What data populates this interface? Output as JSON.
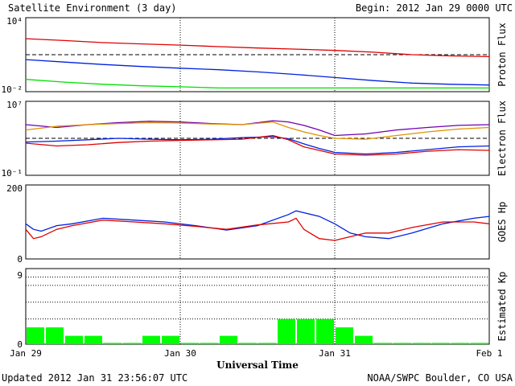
{
  "header": {
    "title": "Satellite Environment (3 day)",
    "begin": "Begin:  2012 Jan 29 0000 UTC"
  },
  "footer": {
    "updated": "Updated 2012 Jan 31 23:56:07 UTC",
    "credit": "NOAA/SWPC Boulder, CO USA",
    "xlabel": "Universal Time"
  },
  "x_ticks": [
    "Jan 29",
    "Jan 30",
    "Jan 31",
    "Feb 1"
  ],
  "colors": {
    "red": "#e00000",
    "blue": "#0020e0",
    "green": "#00e000",
    "purple": "#7000b0",
    "orange": "#e09000",
    "kp_bar": "#00ff00"
  },
  "chart_data": [
    {
      "type": "line",
      "ylabel": "Proton Flux",
      "yscale": "log",
      "ytick_labels": [
        "10⁴",
        "10⁻²"
      ],
      "ylim": [
        0.01,
        10000
      ],
      "threshold": 10,
      "x": [
        0,
        0.25,
        0.5,
        0.75,
        1,
        1.25,
        1.5,
        1.75,
        2,
        2.25,
        2.5,
        2.75,
        3
      ],
      "series": [
        {
          "color": "red",
          "values": [
            200,
            140,
            95,
            75,
            60,
            45,
            35,
            28,
            22,
            16,
            10,
            8,
            7
          ]
        },
        {
          "color": "blue",
          "values": [
            4,
            2.5,
            1.6,
            1.1,
            0.8,
            0.6,
            0.4,
            0.25,
            0.14,
            0.08,
            0.05,
            0.04,
            0.035
          ]
        },
        {
          "color": "green",
          "values": [
            0.1,
            0.06,
            0.04,
            0.03,
            0.025,
            0.02,
            0.02,
            0.02,
            0.02,
            0.02,
            0.02,
            0.02,
            0.02
          ]
        }
      ]
    },
    {
      "type": "line",
      "ylabel": "Electron Flux",
      "yscale": "log",
      "ytick_labels": [
        "10⁷",
        "10⁻¹"
      ],
      "ylim": [
        0.1,
        10000000
      ],
      "threshold": 1000,
      "x": [
        0,
        0.2,
        0.4,
        0.6,
        0.8,
        1.0,
        1.2,
        1.4,
        1.6,
        1.7,
        1.8,
        1.9,
        2.0,
        2.2,
        2.4,
        2.6,
        2.8,
        3.0
      ],
      "series": [
        {
          "color": "purple",
          "values": [
            30000,
            15000,
            30000,
            50000,
            70000,
            60000,
            40000,
            30000,
            80000,
            60000,
            25000,
            8000,
            2000,
            3000,
            8000,
            15000,
            25000,
            30000
          ]
        },
        {
          "color": "orange",
          "values": [
            8000,
            20000,
            30000,
            40000,
            50000,
            45000,
            35000,
            30000,
            60000,
            15000,
            5000,
            2000,
            1000,
            800,
            2000,
            5000,
            10000,
            15000
          ]
        },
        {
          "color": "blue",
          "values": [
            400,
            500,
            700,
            1000,
            800,
            700,
            800,
            1200,
            1500,
            900,
            250,
            80,
            30,
            20,
            30,
            60,
            120,
            150
          ]
        },
        {
          "color": "red",
          "values": [
            300,
            150,
            200,
            350,
            500,
            600,
            700,
            800,
            2000,
            700,
            120,
            50,
            20,
            15,
            20,
            40,
            60,
            50
          ]
        }
      ]
    },
    {
      "type": "line",
      "ylabel": "GOES Hp",
      "yscale": "linear",
      "ytick_labels": [
        "200",
        "0"
      ],
      "ylim": [
        0,
        200
      ],
      "x": [
        0,
        0.05,
        0.1,
        0.2,
        0.3,
        0.5,
        0.7,
        0.9,
        1.1,
        1.3,
        1.5,
        1.7,
        1.75,
        1.8,
        1.9,
        2.0,
        2.1,
        2.2,
        2.35,
        2.5,
        2.7,
        2.9,
        3.0
      ],
      "series": [
        {
          "color": "blue",
          "values": [
            95,
            80,
            75,
            90,
            95,
            110,
            105,
            100,
            90,
            78,
            90,
            120,
            130,
            125,
            115,
            95,
            70,
            60,
            55,
            70,
            95,
            110,
            115
          ]
        },
        {
          "color": "red",
          "values": [
            80,
            55,
            60,
            80,
            90,
            105,
            100,
            95,
            88,
            80,
            92,
            100,
            110,
            80,
            55,
            50,
            60,
            70,
            70,
            85,
            100,
            100,
            95
          ]
        }
      ]
    },
    {
      "type": "bar",
      "ylabel": "Estimated Kp",
      "ytick_labels": [
        "9",
        "0"
      ],
      "ylim": [
        0,
        9
      ],
      "values": [
        2,
        2,
        1,
        1,
        0,
        0,
        1,
        1,
        0,
        0,
        1,
        0,
        0,
        3,
        3,
        3,
        2,
        1,
        0,
        0,
        0,
        0,
        0,
        0
      ]
    }
  ]
}
